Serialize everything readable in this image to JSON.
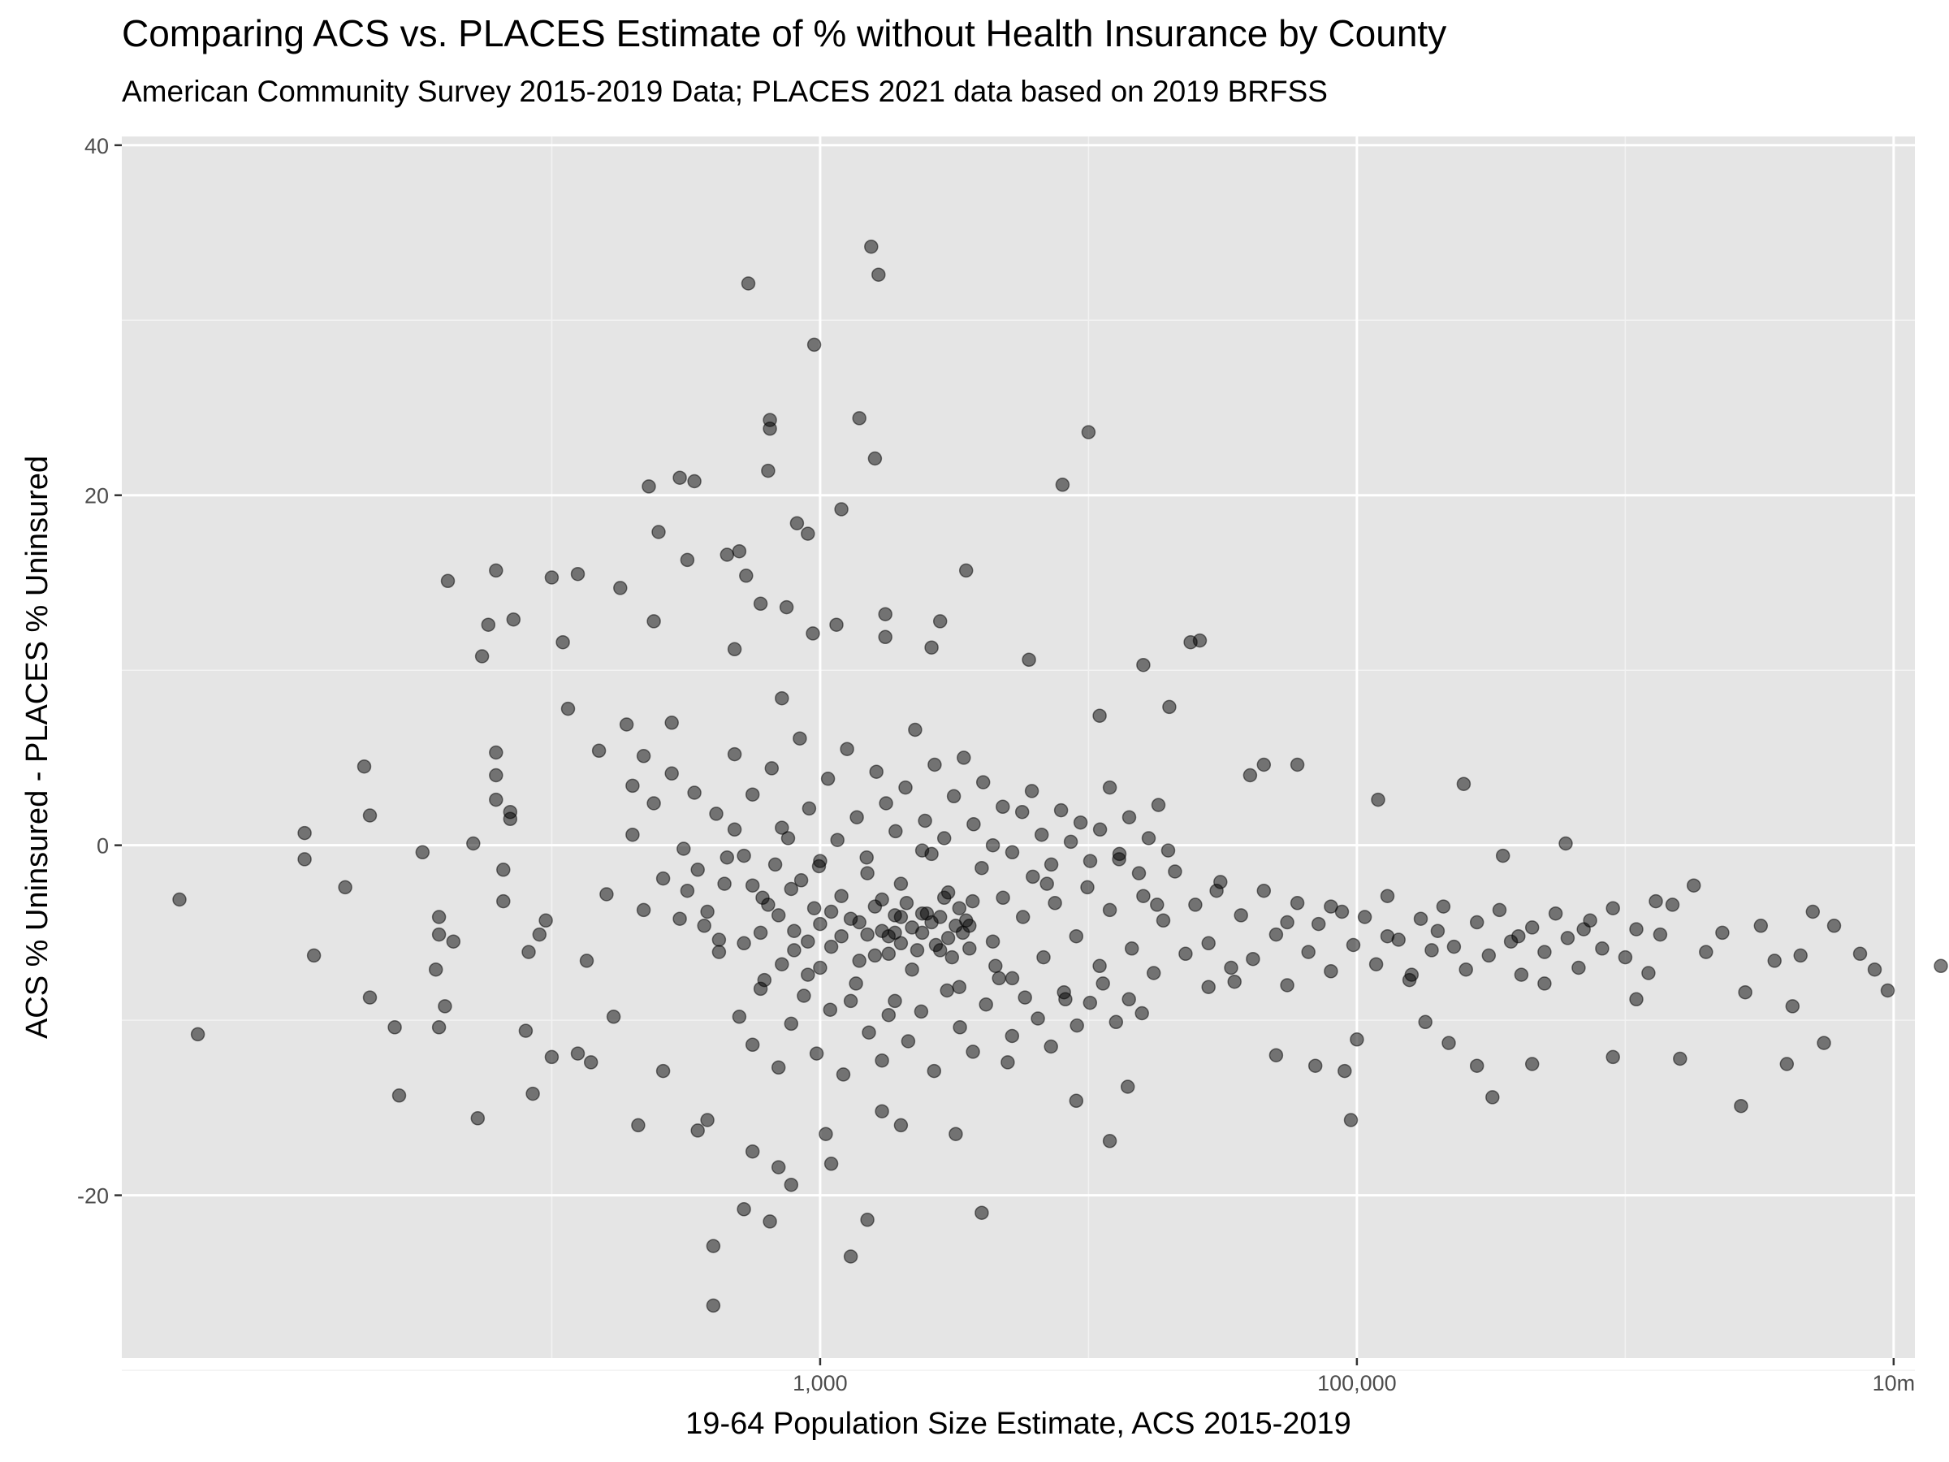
{
  "chart_data": {
    "type": "scatter",
    "title": "Comparing ACS vs. PLACES Estimate of % without Health Insurance by County",
    "subtitle": "American Community Survey 2015-2019 Data; PLACES 2021 data based on 2019 BRFSS",
    "xlabel": "19-64 Population Size Estimate, ACS 2015-2019",
    "ylabel": "ACS % Uninsured - PLACES % Uninsured",
    "x_scale": "log10",
    "xlim": [
      2.5,
      12000000
    ],
    "ylim": [
      -29.3,
      40.5
    ],
    "x_ticks": [
      {
        "value": 1000,
        "label": "1,000"
      },
      {
        "value": 100000,
        "label": "100,000"
      },
      {
        "value": 10000000,
        "label": "10m"
      }
    ],
    "y_ticks": [
      {
        "value": -20,
        "label": "-20"
      },
      {
        "value": 0,
        "label": "0"
      },
      {
        "value": 20,
        "label": "20"
      },
      {
        "value": 40,
        "label": "40"
      }
    ],
    "grid": true,
    "background": "#e5e5e5",
    "point_color": "#000000",
    "point_opacity": 0.5,
    "points_note_x": "county population",
    "points": [
      [
        4.1,
        -3.1
      ],
      [
        4.8,
        -10.8
      ],
      [
        12,
        0.7
      ],
      [
        12,
        -0.8
      ],
      [
        13,
        -6.3
      ],
      [
        17,
        -2.4
      ],
      [
        20,
        4.5
      ],
      [
        21,
        1.7
      ],
      [
        21,
        -8.7
      ],
      [
        26,
        -10.4
      ],
      [
        27,
        -14.3
      ],
      [
        33,
        -0.4
      ],
      [
        37,
        -7.1
      ],
      [
        38,
        -4.1
      ],
      [
        38,
        -5.1
      ],
      [
        38,
        -10.4
      ],
      [
        40,
        -9.2
      ],
      [
        41,
        15.1
      ],
      [
        43,
        -5.5
      ],
      [
        51,
        0.1
      ],
      [
        53,
        -15.6
      ],
      [
        55,
        10.8
      ],
      [
        58,
        12.6
      ],
      [
        62,
        15.7
      ],
      [
        62,
        5.3
      ],
      [
        62,
        4.0
      ],
      [
        62,
        2.6
      ],
      [
        66,
        -1.4
      ],
      [
        66,
        -3.2
      ],
      [
        70,
        1.5
      ],
      [
        70,
        1.9
      ],
      [
        72,
        12.9
      ],
      [
        80,
        -10.6
      ],
      [
        82,
        -6.1
      ],
      [
        85,
        -14.2
      ],
      [
        90,
        -5.1
      ],
      [
        95,
        -4.3
      ],
      [
        100,
        -12.1
      ],
      [
        100,
        15.3
      ],
      [
        110,
        11.6
      ],
      [
        115,
        7.8
      ],
      [
        125,
        15.5
      ],
      [
        125,
        -11.9
      ],
      [
        135,
        -6.6
      ],
      [
        140,
        -12.4
      ],
      [
        150,
        5.4
      ],
      [
        160,
        -2.8
      ],
      [
        170,
        -9.8
      ],
      [
        180,
        14.7
      ],
      [
        190,
        6.9
      ],
      [
        200,
        3.4
      ],
      [
        210,
        -16.0
      ],
      [
        220,
        5.1
      ],
      [
        230,
        20.5
      ],
      [
        240,
        12.8
      ],
      [
        250,
        17.9
      ],
      [
        260,
        -12.9
      ],
      [
        280,
        7.0
      ],
      [
        300,
        21.0
      ],
      [
        320,
        16.3
      ],
      [
        340,
        20.8
      ],
      [
        350,
        -16.3
      ],
      [
        380,
        -15.7
      ],
      [
        400,
        -22.9
      ],
      [
        400,
        -26.3
      ],
      [
        420,
        -5.4
      ],
      [
        450,
        16.6
      ],
      [
        480,
        11.2
      ],
      [
        500,
        16.8
      ],
      [
        520,
        -20.8
      ],
      [
        530,
        15.4
      ],
      [
        540,
        32.1
      ],
      [
        560,
        -17.5
      ],
      [
        600,
        13.8
      ],
      [
        640,
        21.4
      ],
      [
        650,
        -21.5
      ],
      [
        650,
        24.3
      ],
      [
        650,
        23.8
      ],
      [
        700,
        -18.4
      ],
      [
        720,
        8.4
      ],
      [
        750,
        13.6
      ],
      [
        780,
        -19.4
      ],
      [
        820,
        18.4
      ],
      [
        900,
        17.8
      ],
      [
        940,
        12.1
      ],
      [
        950,
        28.6
      ],
      [
        1000,
        -7.0
      ],
      [
        1050,
        -16.5
      ],
      [
        1100,
        -18.2
      ],
      [
        1150,
        12.6
      ],
      [
        1200,
        19.2
      ],
      [
        1300,
        -23.5
      ],
      [
        1400,
        24.4
      ],
      [
        1500,
        -21.4
      ],
      [
        1550,
        34.2
      ],
      [
        1600,
        22.1
      ],
      [
        1650,
        32.6
      ],
      [
        1700,
        -15.2
      ],
      [
        1750,
        11.9
      ],
      [
        1750,
        13.2
      ],
      [
        1800,
        -5.2
      ],
      [
        2000,
        -16.0
      ],
      [
        2000,
        -4.1
      ],
      [
        2400,
        -0.3
      ],
      [
        2600,
        11.3
      ],
      [
        2800,
        12.8
      ],
      [
        3200,
        -16.5
      ],
      [
        3500,
        15.7
      ],
      [
        4000,
        -21.0
      ],
      [
        4500,
        -6.9
      ],
      [
        5000,
        -12.4
      ],
      [
        6000,
        10.6
      ],
      [
        7000,
        -2.2
      ],
      [
        8000,
        20.6
      ],
      [
        9000,
        -14.6
      ],
      [
        10000,
        23.6
      ],
      [
        11000,
        7.4
      ],
      [
        12000,
        -16.9
      ],
      [
        14000,
        -13.8
      ],
      [
        16000,
        10.3
      ],
      [
        18000,
        -3.4
      ],
      [
        20000,
        7.9
      ],
      [
        24000,
        11.6
      ],
      [
        26000,
        11.7
      ],
      [
        28000,
        -8.1
      ],
      [
        30000,
        -2.6
      ],
      [
        35000,
        -7.8
      ],
      [
        40000,
        4.0
      ],
      [
        45000,
        4.6
      ],
      [
        50000,
        -12.0
      ],
      [
        55000,
        -4.4
      ],
      [
        60000,
        4.6
      ],
      [
        70000,
        -12.6
      ],
      [
        80000,
        -3.5
      ],
      [
        90000,
        -12.9
      ],
      [
        95000,
        -15.7
      ],
      [
        100000,
        -11.1
      ],
      [
        120000,
        2.6
      ],
      [
        130000,
        -5.2
      ],
      [
        160000,
        -7.4
      ],
      [
        180000,
        -10.1
      ],
      [
        200000,
        -4.9
      ],
      [
        220000,
        -11.3
      ],
      [
        250000,
        3.5
      ],
      [
        280000,
        -12.6
      ],
      [
        320000,
        -14.4
      ],
      [
        350000,
        -0.6
      ],
      [
        400000,
        -5.2
      ],
      [
        450000,
        -12.5
      ],
      [
        500000,
        -7.9
      ],
      [
        600000,
        0.1
      ],
      [
        700000,
        -4.8
      ],
      [
        900000,
        -12.1
      ],
      [
        1100000,
        -8.8
      ],
      [
        1300000,
        -3.2
      ],
      [
        1600000,
        -12.2
      ],
      [
        1800000,
        -2.3
      ],
      [
        2000000,
        -6.1
      ],
      [
        2300000,
        -5.0
      ],
      [
        2700000,
        -14.9
      ],
      [
        2800000,
        -8.4
      ],
      [
        3200000,
        -4.6
      ],
      [
        3600000,
        -6.6
      ],
      [
        4000000,
        -12.5
      ],
      [
        4200000,
        -9.2
      ],
      [
        4500000,
        -6.3
      ],
      [
        5000000,
        -3.8
      ],
      [
        5500000,
        -11.3
      ],
      [
        6000000,
        -4.6
      ],
      [
        7500000,
        -6.2
      ],
      [
        8500000,
        -7.1
      ],
      [
        9500000,
        -8.3
      ],
      [
        15000000,
        -6.9
      ],
      [
        300,
        -4.2
      ],
      [
        320,
        -2.6
      ],
      [
        350,
        -1.4
      ],
      [
        380,
        -3.8
      ],
      [
        420,
        -6.1
      ],
      [
        450,
        -0.7
      ],
      [
        480,
        0.9
      ],
      [
        520,
        -5.6
      ],
      [
        560,
        -2.3
      ],
      [
        600,
        -8.2
      ],
      [
        640,
        -3.4
      ],
      [
        680,
        -1.1
      ],
      [
        720,
        -6.8
      ],
      [
        760,
        0.4
      ],
      [
        800,
        -4.9
      ],
      [
        850,
        -2.0
      ],
      [
        900,
        -7.4
      ],
      [
        950,
        -3.6
      ],
      [
        1000,
        -0.9
      ],
      [
        1100,
        -5.8
      ],
      [
        1200,
        -2.9
      ],
      [
        1300,
        -8.9
      ],
      [
        1400,
        -4.4
      ],
      [
        1500,
        -1.6
      ],
      [
        1600,
        -6.3
      ],
      [
        1700,
        -3.1
      ],
      [
        1800,
        -9.7
      ],
      [
        1900,
        -5.0
      ],
      [
        2000,
        -2.2
      ],
      [
        2200,
        -7.1
      ],
      [
        2400,
        -3.9
      ],
      [
        2600,
        -0.5
      ],
      [
        2800,
        -6.0
      ],
      [
        3000,
        -2.7
      ],
      [
        3300,
        -8.1
      ],
      [
        3600,
        -4.6
      ],
      [
        4000,
        -1.3
      ],
      [
        4400,
        -5.5
      ],
      [
        4800,
        -3.0
      ],
      [
        5200,
        -7.6
      ],
      [
        5700,
        -4.1
      ],
      [
        6200,
        -1.8
      ],
      [
        6800,
        -6.4
      ],
      [
        7500,
        -3.3
      ],
      [
        8200,
        -8.8
      ],
      [
        9000,
        -5.2
      ],
      [
        9900,
        -2.4
      ],
      [
        11000,
        -6.9
      ],
      [
        12000,
        -3.7
      ],
      [
        13000,
        -0.8
      ],
      [
        14500,
        -5.9
      ],
      [
        16000,
        -2.9
      ],
      [
        17500,
        -7.3
      ],
      [
        19000,
        -4.3
      ],
      [
        21000,
        -1.5
      ],
      [
        23000,
        -6.2
      ],
      [
        25000,
        -3.4
      ],
      [
        28000,
        -5.6
      ],
      [
        31000,
        -2.1
      ],
      [
        34000,
        -7.0
      ],
      [
        37000,
        -4.0
      ],
      [
        41000,
        -6.5
      ],
      [
        45000,
        -2.6
      ],
      [
        50000,
        -5.1
      ],
      [
        55000,
        -8.0
      ],
      [
        60000,
        -3.3
      ],
      [
        66000,
        -6.1
      ],
      [
        72000,
        -4.5
      ],
      [
        80000,
        -7.2
      ],
      [
        88000,
        -3.8
      ],
      [
        97000,
        -5.7
      ],
      [
        107000,
        -4.1
      ],
      [
        118000,
        -6.8
      ],
      [
        130000,
        -2.9
      ],
      [
        143000,
        -5.4
      ],
      [
        157000,
        -7.7
      ],
      [
        173000,
        -4.2
      ],
      [
        190000,
        -6.0
      ],
      [
        210000,
        -3.5
      ],
      [
        230000,
        -5.8
      ],
      [
        255000,
        -7.1
      ],
      [
        280000,
        -4.4
      ],
      [
        310000,
        -6.3
      ],
      [
        340000,
        -3.7
      ],
      [
        375000,
        -5.5
      ],
      [
        410000,
        -7.4
      ],
      [
        450000,
        -4.7
      ],
      [
        500000,
        -6.1
      ],
      [
        550000,
        -3.9
      ],
      [
        610000,
        -5.3
      ],
      [
        670000,
        -7.0
      ],
      [
        740000,
        -4.3
      ],
      [
        820000,
        -5.9
      ],
      [
        900000,
        -3.6
      ],
      [
        1000000,
        -6.4
      ],
      [
        1100000,
        -4.8
      ],
      [
        1220000,
        -7.3
      ],
      [
        1350000,
        -5.1
      ],
      [
        1500000,
        -3.4
      ],
      [
        200,
        0.6
      ],
      [
        220,
        -3.7
      ],
      [
        240,
        2.4
      ],
      [
        260,
        -1.9
      ],
      [
        280,
        4.1
      ],
      [
        310,
        -0.2
      ],
      [
        340,
        3.0
      ],
      [
        370,
        -4.6
      ],
      [
        410,
        1.8
      ],
      [
        440,
        -2.2
      ],
      [
        480,
        5.2
      ],
      [
        520,
        -0.6
      ],
      [
        560,
        2.9
      ],
      [
        610,
        -3.0
      ],
      [
        660,
        4.4
      ],
      [
        720,
        1.0
      ],
      [
        780,
        -2.5
      ],
      [
        840,
        6.1
      ],
      [
        910,
        2.1
      ],
      [
        990,
        -1.2
      ],
      [
        1070,
        3.8
      ],
      [
        1160,
        0.3
      ],
      [
        1260,
        5.5
      ],
      [
        1370,
        1.6
      ],
      [
        1490,
        -0.7
      ],
      [
        1620,
        4.2
      ],
      [
        1760,
        2.4
      ],
      [
        1910,
        0.8
      ],
      [
        2080,
        3.3
      ],
      [
        2260,
        6.6
      ],
      [
        2460,
        1.4
      ],
      [
        2670,
        4.6
      ],
      [
        2900,
        0.4
      ],
      [
        3150,
        2.8
      ],
      [
        3430,
        5.0
      ],
      [
        3730,
        1.2
      ],
      [
        4050,
        3.6
      ],
      [
        4400,
        0.0
      ],
      [
        4790,
        2.2
      ],
      [
        5200,
        -0.4
      ],
      [
        5660,
        1.9
      ],
      [
        6150,
        3.1
      ],
      [
        6690,
        0.6
      ],
      [
        7270,
        -1.1
      ],
      [
        7900,
        2.0
      ],
      [
        8590,
        0.2
      ],
      [
        9340,
        1.3
      ],
      [
        10150,
        -0.9
      ],
      [
        11040,
        0.9
      ],
      [
        12000,
        3.3
      ],
      [
        13040,
        -0.5
      ],
      [
        14180,
        1.6
      ],
      [
        15410,
        -1.6
      ],
      [
        16760,
        0.4
      ],
      [
        18220,
        2.3
      ],
      [
        19810,
        -0.3
      ],
      [
        500,
        -9.8
      ],
      [
        560,
        -11.4
      ],
      [
        620,
        -7.7
      ],
      [
        700,
        -12.7
      ],
      [
        780,
        -10.2
      ],
      [
        870,
        -8.6
      ],
      [
        970,
        -11.9
      ],
      [
        1090,
        -9.4
      ],
      [
        1220,
        -13.1
      ],
      [
        1360,
        -7.9
      ],
      [
        1520,
        -10.7
      ],
      [
        1700,
        -12.3
      ],
      [
        1900,
        -8.9
      ],
      [
        2130,
        -11.2
      ],
      [
        2380,
        -9.5
      ],
      [
        2660,
        -12.9
      ],
      [
        2970,
        -8.3
      ],
      [
        3320,
        -10.4
      ],
      [
        3710,
        -11.8
      ],
      [
        4150,
        -9.1
      ],
      [
        4640,
        -7.6
      ],
      [
        5190,
        -10.9
      ],
      [
        5800,
        -8.7
      ],
      [
        6480,
        -9.9
      ],
      [
        7250,
        -11.5
      ],
      [
        8100,
        -8.4
      ],
      [
        9060,
        -10.3
      ],
      [
        10130,
        -9.0
      ],
      [
        11320,
        -7.9
      ],
      [
        12660,
        -10.1
      ],
      [
        14150,
        -8.8
      ],
      [
        15820,
        -9.6
      ],
      [
        600,
        -5.0
      ],
      [
        700,
        -4.0
      ],
      [
        800,
        -6.0
      ],
      [
        900,
        -5.5
      ],
      [
        1000,
        -4.5
      ],
      [
        1100,
        -3.8
      ],
      [
        1200,
        -5.2
      ],
      [
        1300,
        -4.2
      ],
      [
        1400,
        -6.6
      ],
      [
        1500,
        -5.1
      ],
      [
        1600,
        -3.5
      ],
      [
        1700,
        -4.9
      ],
      [
        1800,
        -6.2
      ],
      [
        1900,
        -4.0
      ],
      [
        2000,
        -5.6
      ],
      [
        2100,
        -3.3
      ],
      [
        2200,
        -4.7
      ],
      [
        2300,
        -6.0
      ],
      [
        2400,
        -5.0
      ],
      [
        2500,
        -3.9
      ],
      [
        2600,
        -4.4
      ],
      [
        2700,
        -5.7
      ],
      [
        2800,
        -4.1
      ],
      [
        2900,
        -3.0
      ],
      [
        3000,
        -5.3
      ],
      [
        3100,
        -6.4
      ],
      [
        3200,
        -4.6
      ],
      [
        3300,
        -3.6
      ],
      [
        3400,
        -5.0
      ],
      [
        3500,
        -4.3
      ],
      [
        3600,
        -5.9
      ],
      [
        3700,
        -3.2
      ]
    ]
  }
}
